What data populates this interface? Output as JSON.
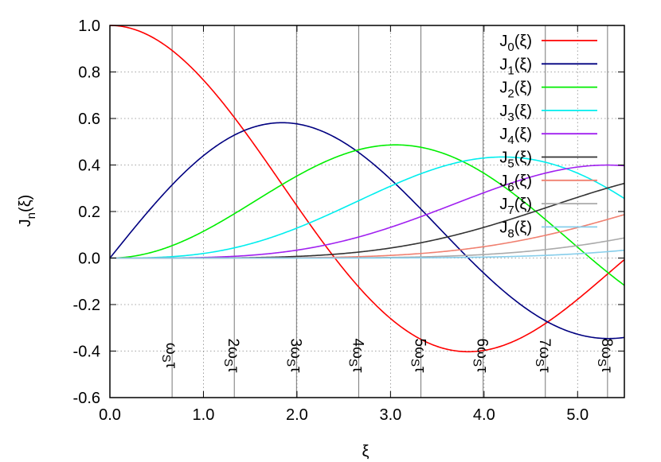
{
  "chart_data": {
    "type": "line",
    "title": "",
    "xlabel": "ξ",
    "ylabel_main": "J",
    "ylabel_sub": "n",
    "ylabel_tail": "(ξ)",
    "xlim": [
      0,
      5.5
    ],
    "ylim": [
      -0.6,
      1.0
    ],
    "grid": true,
    "x_ticks": [
      0,
      1,
      2,
      3,
      4,
      5
    ],
    "x_tick_labels": [
      "0.0",
      "1.0",
      "2.0",
      "3.0",
      "4.0",
      "5.0"
    ],
    "y_ticks": [
      -0.6,
      -0.4,
      -0.2,
      0.0,
      0.2,
      0.4,
      0.6,
      0.8,
      1.0
    ],
    "y_tick_labels": [
      "-0.6",
      "-0.4",
      "-0.2",
      "0.0",
      "0.2",
      "0.4",
      "0.6",
      "0.8",
      "1.0"
    ],
    "legend_position": "top-right",
    "series": [
      {
        "name": "J0(ξ)",
        "label_main": "J",
        "label_sub": "0",
        "label_tail": "(ξ)",
        "order": 0,
        "color": "#ff0000"
      },
      {
        "name": "J1(ξ)",
        "label_main": "J",
        "label_sub": "1",
        "label_tail": "(ξ)",
        "order": 1,
        "color": "#000080"
      },
      {
        "name": "J2(ξ)",
        "label_main": "J",
        "label_sub": "2",
        "label_tail": "(ξ)",
        "order": 2,
        "color": "#00ee00"
      },
      {
        "name": "J3(ξ)",
        "label_main": "J",
        "label_sub": "3",
        "label_tail": "(ξ)",
        "order": 3,
        "color": "#00eeee"
      },
      {
        "name": "J4(ξ)",
        "label_main": "J",
        "label_sub": "4",
        "label_tail": "(ξ)",
        "order": 4,
        "color": "#a020f0"
      },
      {
        "name": "J5(ξ)",
        "label_main": "J",
        "label_sub": "5",
        "label_tail": "(ξ)",
        "order": 5,
        "color": "#333333"
      },
      {
        "name": "J6(ξ)",
        "label_main": "J",
        "label_sub": "6",
        "label_tail": "(ξ)",
        "order": 6,
        "color": "#f08070"
      },
      {
        "name": "J7(ξ)",
        "label_main": "J",
        "label_sub": "7",
        "label_tail": "(ξ)",
        "order": 7,
        "color": "#aaaaaa"
      },
      {
        "name": "J8(ξ)",
        "label_main": "J",
        "label_sub": "8",
        "label_tail": "(ξ)",
        "order": 8,
        "color": "#87ceeb"
      }
    ],
    "vertical_lines": [
      {
        "x": 0.665,
        "label_prefix": "",
        "label_main": "ω",
        "label_sub": "S",
        "label_tail": "τ"
      },
      {
        "x": 1.33,
        "label_prefix": "2",
        "label_main": "ω",
        "label_sub": "S",
        "label_tail": "τ"
      },
      {
        "x": 1.995,
        "label_prefix": "3",
        "label_main": "ω",
        "label_sub": "S",
        "label_tail": "τ"
      },
      {
        "x": 2.66,
        "label_prefix": "4",
        "label_main": "ω",
        "label_sub": "S",
        "label_tail": "τ"
      },
      {
        "x": 3.325,
        "label_prefix": "5",
        "label_main": "ω",
        "label_sub": "S",
        "label_tail": "τ"
      },
      {
        "x": 3.99,
        "label_prefix": "6",
        "label_main": "ω",
        "label_sub": "S",
        "label_tail": "τ"
      },
      {
        "x": 4.655,
        "label_prefix": "7",
        "label_main": "ω",
        "label_sub": "S",
        "label_tail": "τ"
      },
      {
        "x": 5.32,
        "label_prefix": "8",
        "label_main": "ω",
        "label_sub": "S",
        "label_tail": "τ"
      }
    ]
  }
}
